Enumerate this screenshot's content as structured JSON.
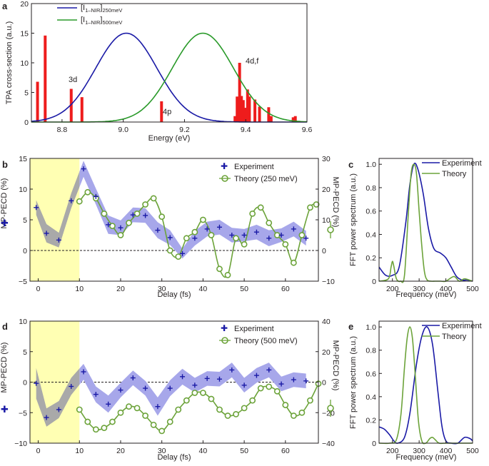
{
  "chart_data": [
    {
      "panel": "a",
      "type": "bar+line",
      "xlabel": "Energy (eV)",
      "ylabel": "TPA cross-section (a.u.)",
      "xlim": [
        8.7,
        9.6
      ],
      "ylim": [
        0,
        20
      ],
      "xticks": [
        "8.8",
        "9.0",
        "9.2",
        "9.4",
        "9.6"
      ],
      "yticks": [
        "0",
        "5",
        "10",
        "15",
        "20"
      ],
      "legend": [
        {
          "main": "[I",
          "sub1": "1–NIR",
          "mid": "]",
          "sub2": "250meV",
          "color": "#1a1aa6"
        },
        {
          "main": "[I",
          "sub1": "1–NIR",
          "mid": "]",
          "sub2": "500meV",
          "color": "#2a9a2a"
        }
      ],
      "annotations": [
        "3d",
        "4p",
        "4d,f"
      ],
      "bars": [
        {
          "x": 8.72,
          "y": 6.8
        },
        {
          "x": 8.745,
          "y": 14.6
        },
        {
          "x": 8.83,
          "y": 5.6
        },
        {
          "x": 8.865,
          "y": 4.2
        },
        {
          "x": 9.125,
          "y": 3.5
        },
        {
          "x": 9.365,
          "y": 1.0
        },
        {
          "x": 9.372,
          "y": 4.3
        },
        {
          "x": 9.38,
          "y": 10.0
        },
        {
          "x": 9.386,
          "y": 4.4
        },
        {
          "x": 9.392,
          "y": 3.7
        },
        {
          "x": 9.398,
          "y": 2.4
        },
        {
          "x": 9.406,
          "y": 5.5
        },
        {
          "x": 9.412,
          "y": 4.3
        },
        {
          "x": 9.43,
          "y": 3.8
        },
        {
          "x": 9.445,
          "y": 2.6
        },
        {
          "x": 9.475,
          "y": 2.5
        },
        {
          "x": 9.483,
          "y": 1.0
        },
        {
          "x": 9.555,
          "y": 0.8
        },
        {
          "x": 9.562,
          "y": 1.0
        }
      ],
      "series": [
        {
          "name": "250meV",
          "center": 9.01,
          "sigma": 0.1,
          "amp": 15,
          "color": "#1a1aa6"
        },
        {
          "name": "500meV",
          "center": 9.26,
          "sigma": 0.1,
          "amp": 15,
          "color": "#2a9a2a"
        }
      ],
      "bar_color": "#ee1c1c"
    },
    {
      "panel": "b",
      "type": "line",
      "xlabel": "Delay (fs)",
      "ylabel": "MP-PECD (%)",
      "ylabel_right": "MP-PECD (%)",
      "xlim": [
        -2,
        68
      ],
      "ylim": [
        -5,
        15
      ],
      "ylim_right": [
        -10,
        30
      ],
      "xticks": [
        "0",
        "10",
        "20",
        "30",
        "40",
        "50",
        "60"
      ],
      "yticks": [
        "−5",
        "0",
        "5",
        "10",
        "15"
      ],
      "yticks_right": [
        "−10",
        "0",
        "10",
        "20",
        "30"
      ],
      "legend": [
        "Experiment",
        "Theory (250 meV)"
      ],
      "highlight": [
        -2,
        10
      ],
      "experiment": {
        "x": [
          -0.5,
          2,
          5,
          8,
          11,
          14,
          17,
          20,
          23,
          26,
          29,
          32,
          35,
          38,
          41,
          44,
          47,
          50,
          53,
          56,
          59,
          62,
          65
        ],
        "y": [
          7.0,
          2.8,
          1.7,
          8.1,
          13.3,
          8.8,
          4.2,
          3.7,
          5.8,
          5.7,
          3.3,
          2.1,
          -0.5,
          2.0,
          3.5,
          3.8,
          2.5,
          2.5,
          3.0,
          2.0,
          2.5,
          3.5,
          2.0
        ],
        "err": [
          1.2,
          1.5,
          1.2,
          1.2,
          1.3,
          1.3,
          1.5,
          1.2,
          1.2,
          1.2,
          1.3,
          1.2,
          0.8,
          1.2,
          1.2,
          1.2,
          1.2,
          1.0,
          1.2,
          1.3,
          1.1,
          1.2,
          1.2
        ],
        "color": "#1a1aa6",
        "band": "#a7a7ea"
      },
      "theory": {
        "x": [
          10,
          12,
          14,
          16,
          18,
          20,
          22,
          24,
          26,
          28,
          30,
          32,
          34,
          36,
          38,
          40,
          42,
          44,
          46,
          48,
          50,
          52,
          54,
          56,
          58,
          60,
          62,
          64,
          66,
          67.5
        ],
        "y": [
          16,
          19,
          17,
          12,
          8,
          5,
          9,
          12,
          15,
          17,
          11,
          0,
          -2,
          4,
          6,
          10,
          5,
          -6,
          -8,
          4,
          2,
          12,
          14,
          9,
          5,
          2,
          -4,
          5,
          14,
          15
        ],
        "color": "#6ca33a"
      }
    },
    {
      "panel": "c",
      "type": "line",
      "xlabel": "Frequency (meV)",
      "ylabel": "FFT power spectrum (a.u.)",
      "xlim": [
        150,
        500
      ],
      "ylim": [
        0,
        1.05
      ],
      "xticks": [
        "200",
        "300",
        "400",
        "500"
      ],
      "yticks": [
        "0",
        "0.2",
        "0.4",
        "0.6",
        "0.8",
        "1.0"
      ],
      "legend": [
        "Experiment",
        "Theory"
      ],
      "series": [
        {
          "name": "Experiment",
          "color": "#1a1aa6",
          "x": [
            150,
            175,
            200,
            225,
            250,
            265,
            280,
            295,
            315,
            335,
            355,
            380,
            400,
            420,
            440,
            460,
            480,
            500
          ],
          "y": [
            0.12,
            0.05,
            0.05,
            0.12,
            0.5,
            0.82,
            1.0,
            0.96,
            0.75,
            0.45,
            0.28,
            0.24,
            0.2,
            0.12,
            0.04,
            0.01,
            0.01,
            0.0
          ]
        },
        {
          "name": "Theory",
          "color": "#6ca33a",
          "x": [
            150,
            185,
            195,
            200,
            205,
            215,
            230,
            245,
            260,
            270,
            280,
            290,
            300,
            310,
            320,
            330,
            345,
            360,
            380,
            400,
            430,
            450,
            470,
            500
          ],
          "y": [
            0.0,
            0.02,
            0.12,
            0.17,
            0.13,
            0.02,
            0.0,
            0.05,
            0.6,
            0.92,
            1.0,
            0.92,
            0.6,
            0.3,
            0.08,
            0.01,
            0.0,
            0.0,
            0.0,
            0.0,
            0.04,
            0.0,
            0.02,
            0.0
          ]
        }
      ]
    },
    {
      "panel": "d",
      "type": "line",
      "xlabel": "Delay (fs)",
      "ylabel": "MP-PECD (%)",
      "ylabel_right": "MP-PECD (%)",
      "xlim": [
        -2,
        68
      ],
      "ylim": [
        -10,
        10
      ],
      "ylim_right": [
        -40,
        40
      ],
      "xticks": [
        "0",
        "10",
        "20",
        "30",
        "40",
        "50",
        "60"
      ],
      "yticks": [
        "−10",
        "−5",
        "0",
        "5",
        "10"
      ],
      "yticks_right": [
        "−40",
        "−20",
        "0",
        "20",
        "40"
      ],
      "legend": [
        "Experiment",
        "Theory (500 meV)"
      ],
      "highlight": [
        -2,
        10
      ],
      "experiment": {
        "x": [
          -0.5,
          2,
          5,
          8,
          11,
          14,
          17,
          20,
          23,
          26,
          29,
          32,
          35,
          38,
          41,
          44,
          47,
          50,
          53,
          56,
          59,
          62,
          65
        ],
        "y": [
          -0.2,
          -5.8,
          -4.5,
          -0.7,
          1.7,
          -2.0,
          -3.6,
          -1.3,
          0.7,
          -1.0,
          -4.0,
          -1.0,
          0.9,
          -0.5,
          0.6,
          0.5,
          2.0,
          -0.5,
          1.1,
          2.0,
          -0.3,
          0.4,
          0.2
        ],
        "err": [
          2.5,
          1.5,
          1.4,
          1.4,
          1.3,
          1.3,
          1.4,
          1.2,
          1.2,
          1.2,
          1.5,
          1.3,
          1.3,
          1.2,
          1.2,
          1.2,
          1.2,
          1.2,
          1.2,
          1.2,
          1.2,
          1.2,
          1.2
        ],
        "color": "#1a1aa6",
        "band": "#a7a7ea"
      },
      "theory": {
        "x": [
          10,
          12,
          14,
          16,
          18,
          20,
          22,
          24,
          26,
          28,
          30,
          32,
          34,
          36,
          38,
          40,
          42,
          44,
          46,
          48,
          50,
          52,
          54,
          56,
          58,
          60,
          62,
          64,
          66,
          68
        ],
        "y": [
          -18,
          -26,
          -31,
          -30,
          -26,
          -20,
          -16,
          -17,
          -22,
          -28,
          -32,
          -26,
          -18,
          -12,
          -7,
          -7,
          -11,
          -18,
          -22,
          -21,
          -17,
          -12,
          -4,
          -3,
          -6,
          -15,
          -22,
          -20,
          -12,
          -1
        ],
        "color": "#6ca33a"
      }
    },
    {
      "panel": "e",
      "type": "line",
      "xlabel": "Frequency (meV)",
      "ylabel": "FFT power spectrum (a.u.)",
      "xlim": [
        150,
        500
      ],
      "ylim": [
        0,
        1.05
      ],
      "xticks": [
        "200",
        "300",
        "400",
        "500"
      ],
      "yticks": [
        "0",
        "0.2",
        "0.4",
        "0.6",
        "0.8",
        "1.0"
      ],
      "legend": [
        "Experiment",
        "Theory"
      ],
      "series": [
        {
          "name": "Experiment",
          "color": "#1a1aa6",
          "x": [
            150,
            170,
            190,
            205,
            220,
            245,
            265,
            290,
            310,
            330,
            350,
            370,
            385,
            400,
            420,
            445,
            470,
            490,
            500
          ],
          "y": [
            0.14,
            0.12,
            0.07,
            0.02,
            0.0,
            0.05,
            0.25,
            0.68,
            0.92,
            1.0,
            0.85,
            0.45,
            0.15,
            0.02,
            0.0,
            0.0,
            0.05,
            0.04,
            0.02
          ]
        },
        {
          "name": "Theory",
          "color": "#6ca33a",
          "x": [
            150,
            190,
            215,
            232,
            245,
            255,
            265,
            275,
            285,
            297,
            310,
            325,
            340,
            350,
            360,
            375,
            400,
            500
          ],
          "y": [
            0.0,
            0.0,
            0.03,
            0.25,
            0.65,
            0.9,
            1.0,
            0.9,
            0.6,
            0.2,
            0.02,
            0.0,
            0.04,
            0.05,
            0.03,
            0.0,
            0.0,
            0.0
          ]
        }
      ]
    }
  ]
}
